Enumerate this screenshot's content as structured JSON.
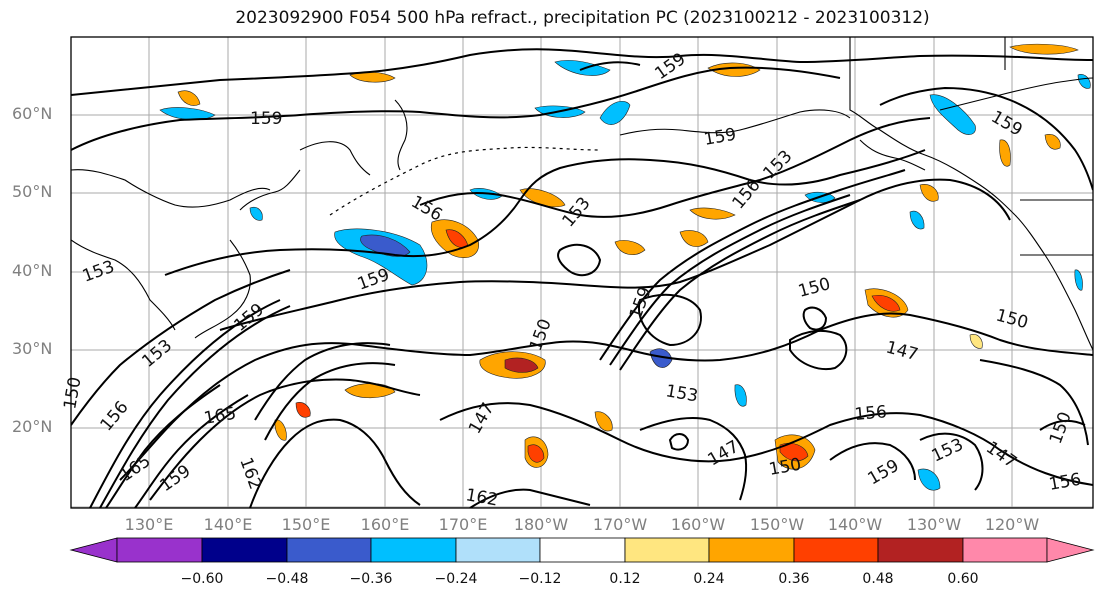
{
  "title": "2023092900 F054 500 hPa refract., precipitation PC (2023100212 - 2023100312)",
  "lat_labels": [
    "60°N",
    "50°N",
    "40°N",
    "30°N",
    "20°N"
  ],
  "lon_labels": [
    "130°E",
    "140°E",
    "150°E",
    "160°E",
    "170°E",
    "180°W",
    "170°W",
    "160°W",
    "150°W",
    "140°W",
    "130°W",
    "120°W"
  ],
  "colorbar": {
    "ticks": [
      "−0.60",
      "−0.48",
      "−0.36",
      "−0.24",
      "−0.12",
      "0.12",
      "0.24",
      "0.36",
      "0.48",
      "0.60"
    ],
    "colors": [
      "#9932cc",
      "#00008b",
      "#3a5bcc",
      "#00bfff",
      "#b0e0fa",
      "#ffffff",
      "#ffe680",
      "#ffa500",
      "#ff4000",
      "#b22222",
      "#ff88aa"
    ]
  },
  "contour_labels": [
    "159",
    "153",
    "156",
    "150",
    "147",
    "165",
    "162"
  ]
}
